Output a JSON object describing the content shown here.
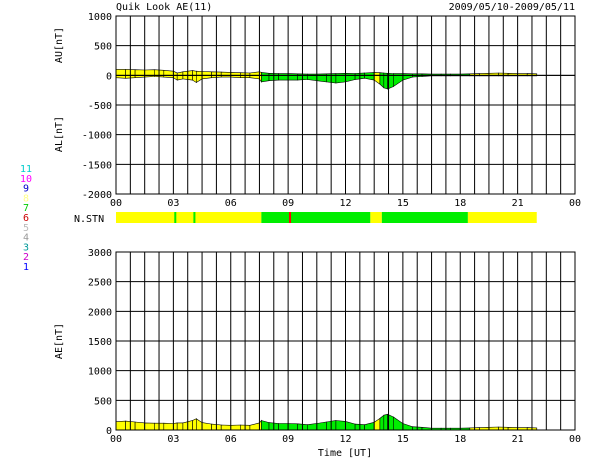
{
  "header": {
    "title": "Quik Look AE(11)",
    "date_range": "2009/05/10-2009/05/11"
  },
  "colors": {
    "stn_low": "#ffff00",
    "stn_high": "#00ee00",
    "stn_mark": "#ff0000"
  },
  "n_stn_legend": [
    {
      "label": "11",
      "color": "#00cccc"
    },
    {
      "label": "10",
      "color": "#ff00ff"
    },
    {
      "label": "9",
      "color": "#0000cc"
    },
    {
      "label": "8",
      "color": "#ffff88"
    },
    {
      "label": "7",
      "color": "#00cc00"
    },
    {
      "label": "6",
      "color": "#cc0000"
    },
    {
      "label": "5",
      "color": "#bbbbbb"
    },
    {
      "label": "4",
      "color": "#999999"
    },
    {
      "label": "3",
      "color": "#009999"
    },
    {
      "label": "2",
      "color": "#cc00cc"
    },
    {
      "label": "1",
      "color": "#0000ff"
    }
  ],
  "chart_data": [
    {
      "type": "area",
      "ylabel_top": "AU[nT]",
      "ylabel_bottom": "AL[nT]",
      "ylim": [
        -2000,
        1000
      ],
      "yticks": [
        "1000",
        "500",
        "0",
        "-500",
        "-1000",
        "-1500",
        "-2000"
      ],
      "xlim": [
        0,
        24
      ],
      "xticks": [
        "00",
        "03",
        "06",
        "09",
        "12",
        "15",
        "18",
        "21",
        "00"
      ],
      "grid": true,
      "x": [
        0,
        0.5,
        1,
        1.5,
        2,
        2.5,
        3,
        3.2,
        3.5,
        4,
        4.2,
        4.5,
        5,
        5.5,
        6,
        6.5,
        7,
        7.5,
        7.6,
        8,
        8.5,
        9,
        9.5,
        10,
        10.5,
        11,
        11.5,
        12,
        12.5,
        13,
        13.5,
        13.8,
        14,
        14.2,
        14.5,
        15,
        15.5,
        16,
        16.5,
        17,
        17.5,
        18,
        18.5,
        19,
        19.5,
        20,
        20.5,
        21,
        21.5,
        22
      ],
      "au": [
        100,
        100,
        95,
        90,
        95,
        85,
        70,
        40,
        60,
        80,
        70,
        65,
        60,
        55,
        50,
        45,
        40,
        60,
        50,
        35,
        30,
        30,
        25,
        20,
        20,
        25,
        30,
        35,
        30,
        40,
        50,
        45,
        40,
        35,
        30,
        30,
        25,
        25,
        20,
        20,
        20,
        20,
        25,
        30,
        35,
        40,
        35,
        30,
        30,
        25
      ],
      "al": [
        -40,
        -50,
        -40,
        -30,
        -20,
        -30,
        -40,
        -80,
        -60,
        -80,
        -120,
        -60,
        -40,
        -30,
        -30,
        -40,
        -40,
        -60,
        -110,
        -90,
        -80,
        -80,
        -80,
        -70,
        -90,
        -110,
        -130,
        -110,
        -70,
        -50,
        -80,
        -150,
        -210,
        -230,
        -190,
        -80,
        -30,
        -20,
        -10,
        -10,
        -10,
        -10,
        -10,
        -10,
        -10,
        -10,
        -10,
        -10,
        -10,
        -10
      ],
      "stn_high_segments": [
        [
          7.6,
          13.3
        ],
        [
          13.9,
          18.4
        ]
      ]
    },
    {
      "type": "area",
      "label": "N.STN",
      "xlim": [
        0,
        24
      ],
      "segments": [
        [
          0,
          7.6,
          "low"
        ],
        [
          7.6,
          13.3,
          "high"
        ],
        [
          13.3,
          13.9,
          "low"
        ],
        [
          13.9,
          18.4,
          "high"
        ],
        [
          18.4,
          22,
          "low"
        ]
      ],
      "marks": [
        [
          3.1,
          "high"
        ],
        [
          4.1,
          "high"
        ],
        [
          9.1,
          "mark"
        ]
      ]
    },
    {
      "type": "area",
      "ylabel": "AE[nT]",
      "xlabel": "Time [UT]",
      "ylim": [
        0,
        3000
      ],
      "yticks": [
        "3000",
        "2500",
        "2000",
        "1500",
        "1000",
        "500",
        "0"
      ],
      "xlim": [
        0,
        24
      ],
      "xticks": [
        "00",
        "03",
        "06",
        "09",
        "12",
        "15",
        "18",
        "21",
        "00"
      ],
      "grid": true,
      "x": [
        0,
        0.5,
        1,
        1.5,
        2,
        2.5,
        3,
        3.2,
        3.5,
        4,
        4.2,
        4.5,
        5,
        5.5,
        6,
        6.5,
        7,
        7.5,
        7.6,
        8,
        8.5,
        9,
        9.5,
        10,
        10.5,
        11,
        11.5,
        12,
        12.5,
        13,
        13.5,
        13.8,
        14,
        14.2,
        14.5,
        15,
        15.5,
        16,
        16.5,
        17,
        17.5,
        18,
        18.5,
        19,
        19.5,
        20,
        20.5,
        21,
        21.5,
        22
      ],
      "ae": [
        140,
        150,
        135,
        120,
        115,
        115,
        110,
        120,
        120,
        160,
        190,
        125,
        100,
        85,
        80,
        85,
        80,
        120,
        160,
        125,
        110,
        110,
        105,
        90,
        110,
        135,
        160,
        145,
        100,
        90,
        130,
        195,
        250,
        265,
        220,
        110,
        55,
        45,
        30,
        30,
        30,
        30,
        35,
        40,
        45,
        50,
        45,
        40,
        40,
        35
      ],
      "stn_high_segments": [
        [
          7.6,
          13.3
        ],
        [
          13.9,
          18.4
        ]
      ]
    }
  ]
}
